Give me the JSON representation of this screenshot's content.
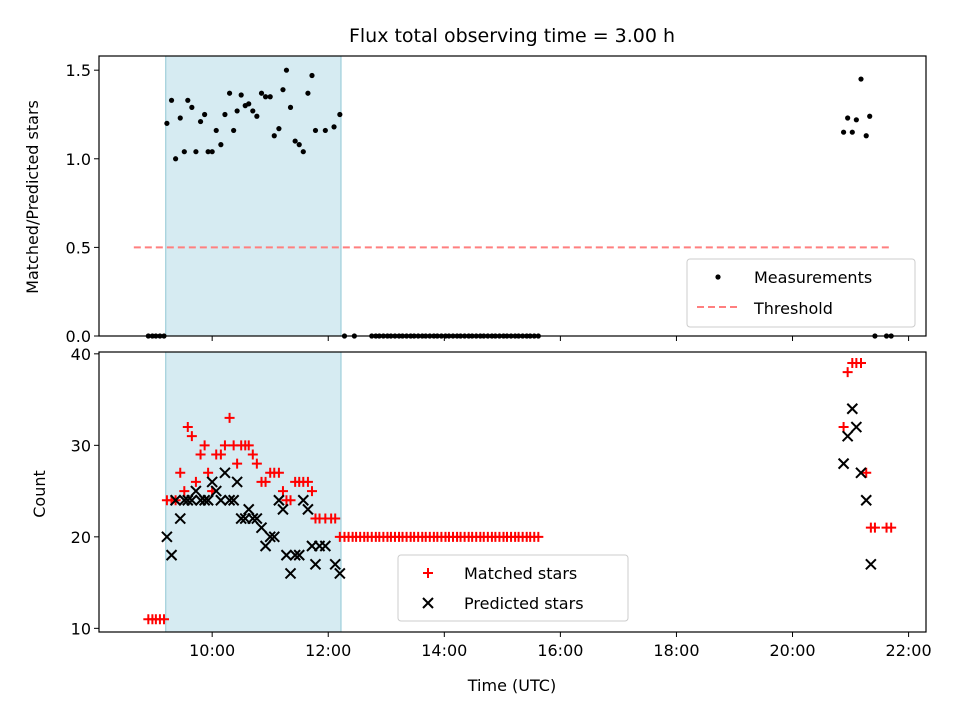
{
  "chart_data": [
    {
      "id": "top",
      "type": "scatter",
      "title": "Flux total observing time = 3.00 h",
      "xlabel": "",
      "ylabel": "Matched/Predicted stars",
      "xlim": [
        8.05,
        22.3
      ],
      "ylim": [
        0.0,
        1.58
      ],
      "yticks": [
        0.0,
        0.5,
        1.0,
        1.5
      ],
      "ytick_labels": [
        "0.0",
        "0.5",
        "1.0",
        "1.5"
      ],
      "xticks": [
        10,
        12,
        14,
        16,
        18,
        20,
        22
      ],
      "shaded_span": [
        9.2,
        12.22
      ],
      "threshold": {
        "value": 0.5,
        "x_range": [
          8.65,
          21.7
        ],
        "color": "#ff7f7f"
      },
      "legend": {
        "placement": "lower right",
        "items": [
          "Measurements",
          "Threshold"
        ]
      },
      "series": [
        {
          "name": "Measurements",
          "color": "#000000",
          "points": [
            [
              8.9,
              0
            ],
            [
              8.97,
              0
            ],
            [
              9.03,
              0
            ],
            [
              9.1,
              0
            ],
            [
              9.17,
              0
            ],
            [
              9.22,
              1.2
            ],
            [
              9.3,
              1.33
            ],
            [
              9.37,
              1.0
            ],
            [
              9.45,
              1.23
            ],
            [
              9.52,
              1.04
            ],
            [
              9.58,
              1.33
            ],
            [
              9.65,
              1.29
            ],
            [
              9.72,
              1.04
            ],
            [
              9.8,
              1.21
            ],
            [
              9.87,
              1.25
            ],
            [
              9.93,
              1.04
            ],
            [
              10.0,
              1.04
            ],
            [
              10.07,
              1.16
            ],
            [
              10.15,
              1.08
            ],
            [
              10.22,
              1.25
            ],
            [
              10.3,
              1.37
            ],
            [
              10.37,
              1.16
            ],
            [
              10.43,
              1.27
            ],
            [
              10.5,
              1.36
            ],
            [
              10.57,
              1.3
            ],
            [
              10.63,
              1.31
            ],
            [
              10.7,
              1.27
            ],
            [
              10.77,
              1.24
            ],
            [
              10.85,
              1.37
            ],
            [
              10.92,
              1.35
            ],
            [
              11.0,
              1.35
            ],
            [
              11.07,
              1.13
            ],
            [
              11.15,
              1.17
            ],
            [
              11.22,
              1.39
            ],
            [
              11.28,
              1.5
            ],
            [
              11.35,
              1.29
            ],
            [
              11.43,
              1.1
            ],
            [
              11.5,
              1.08
            ],
            [
              11.57,
              1.04
            ],
            [
              11.65,
              1.37
            ],
            [
              11.72,
              1.47
            ],
            [
              11.78,
              1.16
            ],
            [
              11.95,
              1.16
            ],
            [
              12.1,
              1.18
            ],
            [
              12.2,
              1.25
            ],
            [
              12.28,
              0
            ],
            [
              12.45,
              0
            ],
            [
              12.75,
              0
            ],
            [
              12.82,
              0
            ],
            [
              12.88,
              0
            ],
            [
              12.95,
              0
            ],
            [
              13.02,
              0
            ],
            [
              13.08,
              0
            ],
            [
              13.15,
              0
            ],
            [
              13.22,
              0
            ],
            [
              13.28,
              0
            ],
            [
              13.35,
              0
            ],
            [
              13.42,
              0
            ],
            [
              13.48,
              0
            ],
            [
              13.55,
              0
            ],
            [
              13.62,
              0
            ],
            [
              13.68,
              0
            ],
            [
              13.75,
              0
            ],
            [
              13.82,
              0
            ],
            [
              13.88,
              0
            ],
            [
              13.95,
              0
            ],
            [
              14.02,
              0
            ],
            [
              14.08,
              0
            ],
            [
              14.15,
              0
            ],
            [
              14.22,
              0
            ],
            [
              14.28,
              0
            ],
            [
              14.35,
              0
            ],
            [
              14.42,
              0
            ],
            [
              14.48,
              0
            ],
            [
              14.55,
              0
            ],
            [
              14.62,
              0
            ],
            [
              14.68,
              0
            ],
            [
              14.75,
              0
            ],
            [
              14.82,
              0
            ],
            [
              14.88,
              0
            ],
            [
              14.95,
              0
            ],
            [
              15.02,
              0
            ],
            [
              15.08,
              0
            ],
            [
              15.15,
              0
            ],
            [
              15.22,
              0
            ],
            [
              15.28,
              0
            ],
            [
              15.35,
              0
            ],
            [
              15.42,
              0
            ],
            [
              15.48,
              0
            ],
            [
              15.55,
              0
            ],
            [
              15.62,
              0
            ],
            [
              20.88,
              1.15
            ],
            [
              20.95,
              1.23
            ],
            [
              21.03,
              1.15
            ],
            [
              21.1,
              1.22
            ],
            [
              21.18,
              1.45
            ],
            [
              21.27,
              1.13
            ],
            [
              21.33,
              1.24
            ],
            [
              21.42,
              0
            ],
            [
              21.62,
              0
            ],
            [
              21.7,
              0
            ]
          ]
        }
      ]
    },
    {
      "id": "bottom",
      "type": "scatter",
      "title": "",
      "xlabel": "Time (UTC)",
      "ylabel": "Count",
      "xlim": [
        8.05,
        22.3
      ],
      "ylim": [
        9.6,
        40.2
      ],
      "yticks": [
        10,
        20,
        30,
        40
      ],
      "ytick_labels": [
        "10",
        "20",
        "30",
        "40"
      ],
      "xticks": [
        10,
        12,
        14,
        16,
        18,
        20,
        22
      ],
      "xtick_labels": [
        "10:00",
        "12:00",
        "14:00",
        "16:00",
        "18:00",
        "20:00",
        "22:00"
      ],
      "shaded_span": [
        9.2,
        12.22
      ],
      "legend": {
        "placement": "lower center",
        "items": [
          "Matched stars",
          "Predicted stars"
        ]
      },
      "series": [
        {
          "name": "Matched stars",
          "marker": "plus",
          "color": "#ff0000",
          "points": [
            [
              8.9,
              11
            ],
            [
              8.97,
              11
            ],
            [
              9.03,
              11
            ],
            [
              9.1,
              11
            ],
            [
              9.17,
              11
            ],
            [
              9.22,
              24
            ],
            [
              9.3,
              24
            ],
            [
              9.37,
              24
            ],
            [
              9.45,
              27
            ],
            [
              9.52,
              25
            ],
            [
              9.58,
              32
            ],
            [
              9.65,
              31
            ],
            [
              9.72,
              26
            ],
            [
              9.8,
              29
            ],
            [
              9.87,
              30
            ],
            [
              9.93,
              27
            ],
            [
              10.0,
              25
            ],
            [
              10.07,
              29
            ],
            [
              10.15,
              29
            ],
            [
              10.22,
              30
            ],
            [
              10.3,
              33
            ],
            [
              10.37,
              30
            ],
            [
              10.43,
              28
            ],
            [
              10.5,
              30
            ],
            [
              10.57,
              30
            ],
            [
              10.63,
              30
            ],
            [
              10.7,
              29
            ],
            [
              10.77,
              28
            ],
            [
              10.85,
              26
            ],
            [
              10.92,
              26
            ],
            [
              11.0,
              27
            ],
            [
              11.07,
              27
            ],
            [
              11.15,
              27
            ],
            [
              11.22,
              25
            ],
            [
              11.28,
              24
            ],
            [
              11.35,
              24
            ],
            [
              11.43,
              26
            ],
            [
              11.5,
              26
            ],
            [
              11.57,
              26
            ],
            [
              11.65,
              26
            ],
            [
              11.72,
              25
            ],
            [
              11.78,
              22
            ],
            [
              11.85,
              22
            ],
            [
              11.95,
              22
            ],
            [
              12.05,
              22
            ],
            [
              12.12,
              22
            ],
            [
              12.2,
              20
            ],
            [
              12.28,
              20
            ],
            [
              12.35,
              20
            ],
            [
              12.42,
              20
            ],
            [
              12.48,
              20
            ],
            [
              12.55,
              20
            ],
            [
              12.62,
              20
            ],
            [
              12.68,
              20
            ],
            [
              12.75,
              20
            ],
            [
              12.82,
              20
            ],
            [
              12.88,
              20
            ],
            [
              12.95,
              20
            ],
            [
              13.02,
              20
            ],
            [
              13.08,
              20
            ],
            [
              13.15,
              20
            ],
            [
              13.22,
              20
            ],
            [
              13.28,
              20
            ],
            [
              13.35,
              20
            ],
            [
              13.42,
              20
            ],
            [
              13.48,
              20
            ],
            [
              13.55,
              20
            ],
            [
              13.62,
              20
            ],
            [
              13.68,
              20
            ],
            [
              13.75,
              20
            ],
            [
              13.82,
              20
            ],
            [
              13.88,
              20
            ],
            [
              13.95,
              20
            ],
            [
              14.02,
              20
            ],
            [
              14.08,
              20
            ],
            [
              14.15,
              20
            ],
            [
              14.22,
              20
            ],
            [
              14.28,
              20
            ],
            [
              14.35,
              20
            ],
            [
              14.42,
              20
            ],
            [
              14.48,
              20
            ],
            [
              14.55,
              20
            ],
            [
              14.62,
              20
            ],
            [
              14.68,
              20
            ],
            [
              14.75,
              20
            ],
            [
              14.82,
              20
            ],
            [
              14.88,
              20
            ],
            [
              14.95,
              20
            ],
            [
              15.02,
              20
            ],
            [
              15.08,
              20
            ],
            [
              15.15,
              20
            ],
            [
              15.22,
              20
            ],
            [
              15.28,
              20
            ],
            [
              15.35,
              20
            ],
            [
              15.42,
              20
            ],
            [
              15.48,
              20
            ],
            [
              15.55,
              20
            ],
            [
              15.62,
              20
            ],
            [
              20.88,
              32
            ],
            [
              20.95,
              38
            ],
            [
              21.03,
              39
            ],
            [
              21.1,
              39
            ],
            [
              21.18,
              39
            ],
            [
              21.27,
              27
            ],
            [
              21.35,
              21
            ],
            [
              21.42,
              21
            ],
            [
              21.62,
              21
            ],
            [
              21.7,
              21
            ]
          ]
        },
        {
          "name": "Predicted stars",
          "marker": "x",
          "color": "#000000",
          "points": [
            [
              9.22,
              20
            ],
            [
              9.3,
              18
            ],
            [
              9.37,
              24
            ],
            [
              9.45,
              22
            ],
            [
              9.52,
              24
            ],
            [
              9.58,
              24
            ],
            [
              9.65,
              24
            ],
            [
              9.72,
              25
            ],
            [
              9.8,
              24
            ],
            [
              9.87,
              24
            ],
            [
              9.93,
              24
            ],
            [
              10.0,
              26
            ],
            [
              10.07,
              25
            ],
            [
              10.15,
              24
            ],
            [
              10.22,
              27
            ],
            [
              10.3,
              24
            ],
            [
              10.37,
              24
            ],
            [
              10.43,
              26
            ],
            [
              10.5,
              22
            ],
            [
              10.57,
              22
            ],
            [
              10.63,
              23
            ],
            [
              10.7,
              22
            ],
            [
              10.77,
              22
            ],
            [
              10.85,
              21
            ],
            [
              10.92,
              19
            ],
            [
              11.0,
              20
            ],
            [
              11.07,
              20
            ],
            [
              11.15,
              24
            ],
            [
              11.22,
              23
            ],
            [
              11.28,
              18
            ],
            [
              11.35,
              16
            ],
            [
              11.43,
              18
            ],
            [
              11.5,
              18
            ],
            [
              11.57,
              24
            ],
            [
              11.65,
              23
            ],
            [
              11.72,
              19
            ],
            [
              11.78,
              17
            ],
            [
              11.85,
              19
            ],
            [
              11.95,
              19
            ],
            [
              12.12,
              17
            ],
            [
              12.2,
              16
            ],
            [
              20.88,
              28
            ],
            [
              20.95,
              31
            ],
            [
              21.03,
              34
            ],
            [
              21.1,
              32
            ],
            [
              21.18,
              27
            ],
            [
              21.27,
              24
            ],
            [
              21.35,
              17
            ]
          ]
        }
      ]
    }
  ]
}
